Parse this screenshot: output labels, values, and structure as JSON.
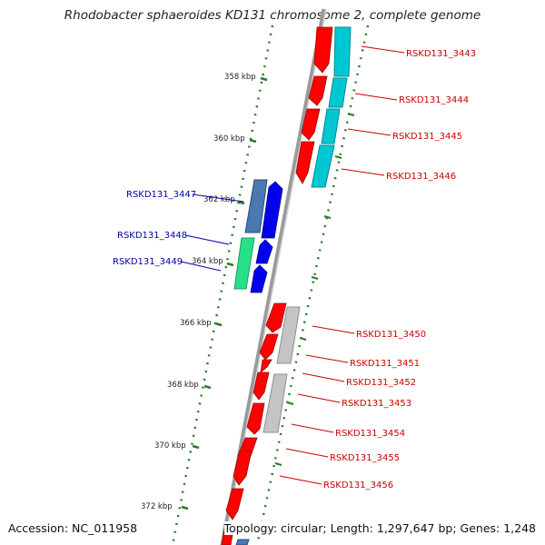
{
  "title": "Rhodobacter sphaeroides KD131 chromosome 2, complete genome",
  "footer": {
    "accession": "Accession: NC_011958",
    "summary": "Topology: circular; Length: 1,297,647 bp; Genes: 1,248"
  },
  "ticks": [
    "358 kbp",
    "360 kbp",
    "362 kbp",
    "364 kbp",
    "366 kbp",
    "368 kbp",
    "370 kbp",
    "372 kbp"
  ],
  "genes_right": [
    "RSKD131_3443",
    "RSKD131_3444",
    "RSKD131_3445",
    "RSKD131_3446",
    "RSKD131_3450",
    "RSKD131_3451",
    "RSKD131_3452",
    "RSKD131_3453",
    "RSKD131_3454",
    "RSKD131_3455",
    "RSKD131_3456"
  ],
  "genes_left": [
    "RSKD131_3447",
    "RSKD131_3448",
    "RSKD131_3449"
  ],
  "colors": {
    "forward_cds": "#ff0000",
    "reverse_cds": "#0000ee",
    "right_label": "#cc0000",
    "left_label": "#0000aa",
    "cyan_feature": "#00c8d2",
    "gray_feature": "#c0c0c0",
    "backbone": "#888888",
    "tick": "#2a7a2a"
  }
}
